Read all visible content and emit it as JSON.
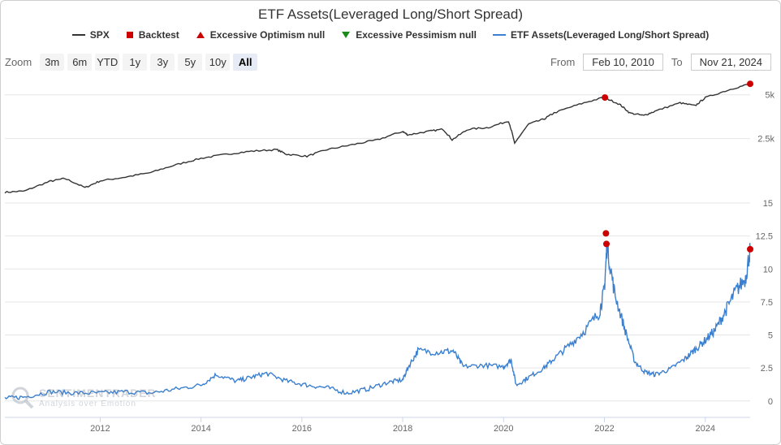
{
  "title": "ETF Assets(Leveraged Long/Short Spread)",
  "legend": [
    {
      "label": "SPX",
      "color": "#333333",
      "symbol": "line"
    },
    {
      "label": "Backtest",
      "color": "#cc0000",
      "symbol": "square"
    },
    {
      "label": "Excessive Optimism null",
      "color": "#cc0000",
      "symbol": "triangle-up"
    },
    {
      "label": "Excessive Pessimism null",
      "color": "#1a8a1a",
      "symbol": "triangle-down"
    },
    {
      "label": "ETF Assets(Leveraged Long/Short Spread)",
      "color": "#3a7fd0",
      "symbol": "line"
    }
  ],
  "zoom": {
    "label": "Zoom",
    "buttons": [
      "3m",
      "6m",
      "YTD",
      "1y",
      "3y",
      "5y",
      "10y",
      "All"
    ],
    "active": "All"
  },
  "range": {
    "from_label": "From",
    "from": "Feb 10, 2010",
    "to_label": "To",
    "to": "Nov 21, 2024"
  },
  "watermark": {
    "line1": "SENTIMENTRADER",
    "line2": "Analysis over Emotion"
  },
  "chart_data": [
    {
      "type": "line",
      "name": "SPX",
      "color": "#333333",
      "scale": "log",
      "x_range": [
        2010.11,
        2024.89
      ],
      "yticks": [
        {
          "value": 2500,
          "label": "2.5k"
        },
        {
          "value": 5000,
          "label": "5k"
        }
      ],
      "x": [
        2010.11,
        2010.5,
        2011.0,
        2011.3,
        2011.7,
        2012.0,
        2012.5,
        2013.0,
        2013.5,
        2014.0,
        2014.5,
        2015.0,
        2015.5,
        2015.7,
        2016.1,
        2016.5,
        2017.0,
        2017.5,
        2018.0,
        2018.1,
        2018.5,
        2018.8,
        2018.98,
        2019.3,
        2019.7,
        2020.1,
        2020.22,
        2020.5,
        2020.8,
        2021.0,
        2021.5,
        2021.99,
        2022.3,
        2022.5,
        2022.78,
        2023.0,
        2023.5,
        2023.8,
        2024.0,
        2024.5,
        2024.89
      ],
      "values": [
        1070,
        1090,
        1270,
        1330,
        1150,
        1280,
        1360,
        1460,
        1650,
        1830,
        1950,
        2050,
        2100,
        1950,
        1890,
        2100,
        2270,
        2450,
        2800,
        2650,
        2800,
        2900,
        2450,
        2900,
        2980,
        3300,
        2300,
        3150,
        3400,
        3750,
        4300,
        4800,
        4300,
        3750,
        3600,
        3850,
        4400,
        4200,
        4770,
        5450,
        5950
      ],
      "markers": [
        {
          "x": 2022.01,
          "value": 4790
        },
        {
          "x": 2024.89,
          "value": 5950
        }
      ]
    },
    {
      "type": "line",
      "name": "ETF Assets(Leveraged Long/Short Spread)",
      "color": "#3a7fd0",
      "x_range": [
        2010.11,
        2024.89
      ],
      "ylim": [
        -1,
        15
      ],
      "yticks": [
        0,
        2.5,
        5,
        7.5,
        10,
        12.5,
        15
      ],
      "xticks": [
        2012,
        2014,
        2016,
        2018,
        2020,
        2022,
        2024
      ],
      "x": [
        2010.11,
        2010.5,
        2011.0,
        2011.5,
        2012.0,
        2012.5,
        2013.0,
        2013.5,
        2014.0,
        2014.3,
        2014.7,
        2015.0,
        2015.3,
        2015.7,
        2016.1,
        2016.5,
        2016.9,
        2017.3,
        2017.7,
        2018.0,
        2018.1,
        2018.3,
        2018.7,
        2019.0,
        2019.2,
        2019.6,
        2020.0,
        2020.15,
        2020.25,
        2020.5,
        2020.8,
        2021.0,
        2021.3,
        2021.6,
        2021.9,
        2022.0,
        2022.05,
        2022.2,
        2022.4,
        2022.6,
        2022.8,
        2023.0,
        2023.3,
        2023.6,
        2023.8,
        2024.0,
        2024.2,
        2024.4,
        2024.6,
        2024.8,
        2024.89
      ],
      "values": [
        0.2,
        0.3,
        0.7,
        0.6,
        0.6,
        0.7,
        0.6,
        0.9,
        1.2,
        2.0,
        1.5,
        1.8,
        2.1,
        1.5,
        1.2,
        1.0,
        0.6,
        0.9,
        1.4,
        1.6,
        2.5,
        3.8,
        3.7,
        3.8,
        2.6,
        2.7,
        2.6,
        3.1,
        1.2,
        1.8,
        2.5,
        3.2,
        4.2,
        5.3,
        6.7,
        8.5,
        11.8,
        8.2,
        5.5,
        3.0,
        2.2,
        2.0,
        2.4,
        3.2,
        3.9,
        4.6,
        5.4,
        6.8,
        8.3,
        9.3,
        11.5
      ],
      "markers": [
        {
          "x": 2022.03,
          "value": 12.7
        },
        {
          "x": 2022.04,
          "value": 11.9
        },
        {
          "x": 2024.89,
          "value": 11.5
        }
      ]
    }
  ]
}
